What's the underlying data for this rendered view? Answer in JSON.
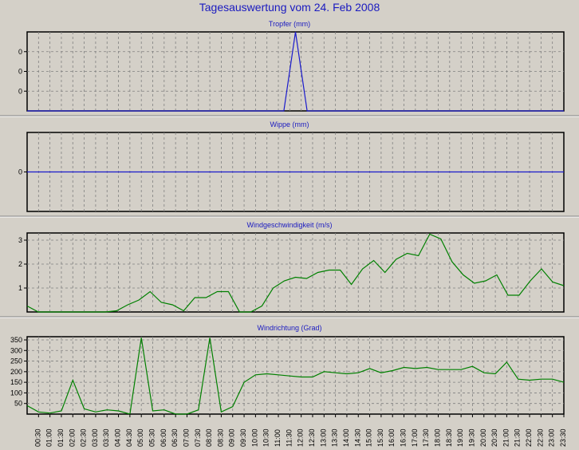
{
  "title": "Tagesauswertung vom 24. Feb 2008",
  "colors": {
    "background": "#d4d0c8",
    "title": "#1a1ac0",
    "blue_line": "#1a1acc",
    "green_line": "#008000",
    "grid": "#808080"
  },
  "x_ticks": [
    "00:30",
    "01:00",
    "01:30",
    "02:00",
    "02:30",
    "03:00",
    "03:30",
    "04:00",
    "04:30",
    "05:00",
    "05:30",
    "06:00",
    "06:30",
    "07:00",
    "07:30",
    "08:00",
    "08:30",
    "09:00",
    "09:30",
    "10:00",
    "10:30",
    "11:00",
    "11:30",
    "12:00",
    "12:30",
    "13:00",
    "13:30",
    "14:00",
    "14:30",
    "15:00",
    "15:30",
    "16:00",
    "16:30",
    "17:00",
    "17:30",
    "18:00",
    "18:30",
    "19:00",
    "19:30",
    "20:00",
    "20:30",
    "21:00",
    "21:30",
    "22:00",
    "22:30",
    "23:00",
    "23:30"
  ],
  "chart_data": [
    {
      "type": "line",
      "title": "Tropfer (mm)",
      "ytick_labels": [
        "0",
        "0",
        "0"
      ],
      "ylim": [
        0,
        1
      ],
      "grid": true,
      "series": [
        {
          "color": "#1a1acc",
          "values": [
            0,
            0,
            0,
            0,
            0,
            0,
            0,
            0,
            0,
            0,
            0,
            0,
            0,
            0,
            0,
            0,
            0,
            0,
            0,
            0,
            0,
            0,
            0,
            1,
            0,
            0,
            0,
            0,
            0,
            0,
            0,
            0,
            0,
            0,
            0,
            0,
            0,
            0,
            0,
            0,
            0,
            0,
            0,
            0,
            0,
            0,
            0
          ]
        }
      ]
    },
    {
      "type": "line",
      "title": "Wippe (mm)",
      "ytick_labels": [
        "0"
      ],
      "ylim": [
        -1,
        1
      ],
      "grid": true,
      "series": [
        {
          "color": "#1a1acc",
          "values": [
            0,
            0,
            0,
            0,
            0,
            0,
            0,
            0,
            0,
            0,
            0,
            0,
            0,
            0,
            0,
            0,
            0,
            0,
            0,
            0,
            0,
            0,
            0,
            0,
            0,
            0,
            0,
            0,
            0,
            0,
            0,
            0,
            0,
            0,
            0,
            0,
            0,
            0,
            0,
            0,
            0,
            0,
            0,
            0,
            0,
            0,
            0
          ]
        }
      ]
    },
    {
      "type": "line",
      "title": "Windgeschwindigkeit (m/s)",
      "ytick_labels": [
        "1",
        "2",
        "3"
      ],
      "ylim": [
        0,
        3.3
      ],
      "grid": true,
      "series": [
        {
          "color": "#008000",
          "values": [
            0.25,
            0,
            0,
            0,
            0,
            0,
            0,
            0,
            0.05,
            0.3,
            0.5,
            0.85,
            0.4,
            0.3,
            0.05,
            0.6,
            0.6,
            0.85,
            0.85,
            0,
            0,
            0.25,
            1.0,
            1.3,
            1.45,
            1.4,
            1.65,
            1.75,
            1.75,
            1.15,
            1.8,
            2.15,
            1.65,
            2.2,
            2.45,
            2.35,
            3.25,
            3.05,
            2.1,
            1.55,
            1.2,
            1.3,
            1.55,
            0.7,
            0.7,
            1.3,
            1.8,
            1.25,
            1.1
          ]
        }
      ]
    },
    {
      "type": "line",
      "title": "Windrichtung (Grad)",
      "ytick_labels": [
        "50",
        "100",
        "150",
        "200",
        "250",
        "300",
        "350"
      ],
      "ylim": [
        0,
        365
      ],
      "grid": true,
      "series": [
        {
          "color": "#008000",
          "values": [
            40,
            10,
            5,
            15,
            160,
            25,
            10,
            20,
            15,
            0,
            360,
            15,
            20,
            0,
            0,
            20,
            360,
            10,
            35,
            150,
            185,
            190,
            185,
            180,
            175,
            175,
            200,
            195,
            190,
            195,
            215,
            195,
            205,
            220,
            215,
            220,
            210,
            210,
            210,
            225,
            195,
            190,
            245,
            165,
            160,
            165,
            165,
            150
          ]
        }
      ]
    }
  ]
}
